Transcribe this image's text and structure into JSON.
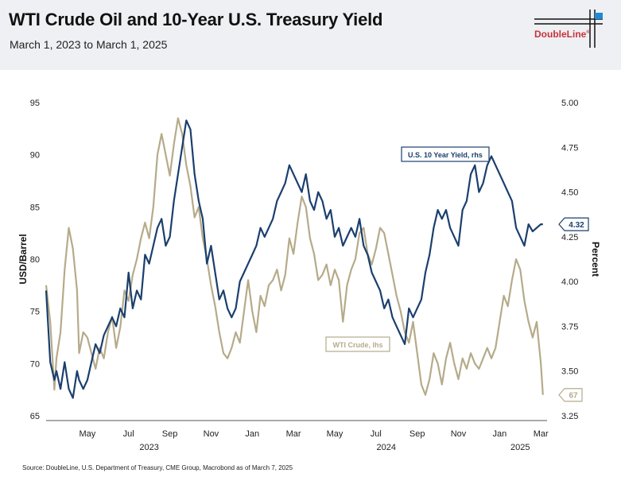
{
  "header": {
    "title": "WTI Crude Oil and 10-Year U.S. Treasury Yield",
    "subtitle": "March 1, 2023 to March 1, 2025",
    "logo_text": "DoubleLine",
    "logo_mark": "®"
  },
  "source": "Source: DoubleLine, U.S. Department of Treasury, CME Group, Macrobond as of March 7, 2025",
  "colors": {
    "crude": "#b5ab8a",
    "yield": "#1b3f6e",
    "header_bg": "#eef0f3",
    "brand": "#c8323c",
    "brand_blue": "#1e8ad6"
  },
  "chart_data": {
    "type": "line",
    "title": "WTI Crude Oil and 10-Year U.S. Treasury Yield",
    "left_axis": {
      "label": "USD/Barrel",
      "ylim": [
        65,
        95
      ],
      "ticks": [
        65,
        70,
        75,
        80,
        85,
        90,
        95
      ]
    },
    "right_axis": {
      "label": "Percent",
      "ylim": [
        3.25,
        5.0
      ],
      "ticks": [
        "3.25",
        "3.50",
        "3.75",
        "4.00",
        "4.25",
        "4.50",
        "4.75",
        "5.00"
      ]
    },
    "x_axis": {
      "range_months": [
        0,
        24.3
      ],
      "ticks": [
        {
          "m": 2,
          "label": "May"
        },
        {
          "m": 4,
          "label": "Jul"
        },
        {
          "m": 6,
          "label": "Sep"
        },
        {
          "m": 8,
          "label": "Nov"
        },
        {
          "m": 10,
          "label": "Jan"
        },
        {
          "m": 12,
          "label": "Mar"
        },
        {
          "m": 14,
          "label": "May"
        },
        {
          "m": 16,
          "label": "Jul"
        },
        {
          "m": 18,
          "label": "Sep"
        },
        {
          "m": 20,
          "label": "Nov"
        },
        {
          "m": 22,
          "label": "Jan"
        },
        {
          "m": 24,
          "label": "Mar"
        }
      ],
      "years": [
        {
          "m": 5,
          "label": "2023"
        },
        {
          "m": 16.5,
          "label": "2024"
        },
        {
          "m": 23,
          "label": "2025"
        }
      ]
    },
    "series": [
      {
        "name": "WTI Crude, lhs",
        "axis": "left",
        "x": [
          0,
          0.2,
          0.4,
          0.5,
          0.7,
          0.9,
          1.1,
          1.3,
          1.5,
          1.6,
          1.8,
          2.0,
          2.2,
          2.4,
          2.6,
          2.8,
          3.0,
          3.2,
          3.4,
          3.6,
          3.8,
          4.0,
          4.2,
          4.4,
          4.6,
          4.8,
          5.0,
          5.2,
          5.4,
          5.6,
          5.8,
          6.0,
          6.2,
          6.4,
          6.6,
          6.8,
          7.0,
          7.2,
          7.4,
          7.6,
          7.8,
          8.0,
          8.2,
          8.4,
          8.6,
          8.8,
          9.0,
          9.2,
          9.4,
          9.6,
          9.8,
          10.0,
          10.2,
          10.4,
          10.6,
          10.8,
          11.0,
          11.2,
          11.4,
          11.6,
          11.8,
          12.0,
          12.2,
          12.4,
          12.6,
          12.8,
          13.0,
          13.2,
          13.4,
          13.6,
          13.8,
          14.0,
          14.2,
          14.4,
          14.6,
          14.8,
          15.0,
          15.2,
          15.4,
          15.6,
          15.8,
          16.0,
          16.2,
          16.4,
          16.6,
          16.8,
          17.0,
          17.2,
          17.4,
          17.6,
          17.8,
          18.0,
          18.2,
          18.4,
          18.6,
          18.8,
          19.0,
          19.2,
          19.4,
          19.6,
          19.8,
          20.0,
          20.2,
          20.4,
          20.6,
          20.8,
          21.0,
          21.2,
          21.4,
          21.6,
          21.8,
          22.0,
          22.2,
          22.4,
          22.6,
          22.8,
          23.0,
          23.2,
          23.4,
          23.6,
          23.8,
          24.0,
          24.1
        ],
        "values": [
          77.5,
          74.0,
          67.5,
          70.5,
          73.0,
          79.0,
          83.0,
          81.0,
          77.0,
          71.0,
          73.0,
          72.5,
          71.0,
          69.5,
          71.5,
          70.5,
          73.0,
          74.5,
          71.5,
          73.5,
          77.0,
          76.0,
          78.5,
          80.0,
          82.0,
          83.5,
          82.0,
          85.0,
          90.0,
          92.0,
          90.0,
          88.0,
          91.0,
          93.5,
          92.0,
          89.0,
          87.0,
          84.0,
          85.0,
          82.0,
          80.0,
          77.5,
          75.5,
          73.0,
          71.0,
          70.5,
          71.5,
          73.0,
          72.0,
          75.0,
          78.0,
          75.0,
          73.0,
          76.5,
          75.5,
          77.5,
          78.0,
          79.0,
          77.0,
          78.5,
          82.0,
          80.5,
          83.5,
          86.0,
          85.0,
          82.0,
          80.5,
          78.0,
          78.5,
          79.5,
          77.5,
          79.0,
          78.0,
          74.0,
          77.5,
          79.0,
          80.0,
          82.5,
          83.0,
          80.5,
          79.5,
          81.0,
          83.0,
          82.5,
          80.5,
          78.5,
          76.5,
          75.0,
          73.0,
          72.0,
          74.0,
          71.0,
          68.0,
          67.0,
          68.5,
          71.0,
          70.0,
          68.0,
          70.5,
          72.0,
          70.0,
          68.5,
          70.5,
          69.5,
          71.0,
          70.0,
          69.5,
          70.5,
          71.5,
          70.5,
          71.5,
          74.0,
          76.5,
          75.5,
          78.0,
          80.0,
          79.0,
          76.0,
          74.0,
          72.5,
          74.0,
          70.0,
          67.0
        ],
        "end_label": "67"
      },
      {
        "name": "U.S. 10 Year Yield, rhs",
        "axis": "right",
        "x": [
          0,
          0.2,
          0.4,
          0.5,
          0.7,
          0.9,
          1.1,
          1.3,
          1.5,
          1.6,
          1.8,
          2.0,
          2.2,
          2.4,
          2.6,
          2.8,
          3.0,
          3.2,
          3.4,
          3.6,
          3.8,
          4.0,
          4.2,
          4.4,
          4.6,
          4.8,
          5.0,
          5.2,
          5.4,
          5.6,
          5.8,
          6.0,
          6.2,
          6.4,
          6.6,
          6.8,
          7.0,
          7.2,
          7.4,
          7.6,
          7.8,
          8.0,
          8.2,
          8.4,
          8.6,
          8.8,
          9.0,
          9.2,
          9.4,
          9.6,
          9.8,
          10.0,
          10.2,
          10.4,
          10.6,
          10.8,
          11.0,
          11.2,
          11.4,
          11.6,
          11.8,
          12.0,
          12.2,
          12.4,
          12.6,
          12.8,
          13.0,
          13.2,
          13.4,
          13.6,
          13.8,
          14.0,
          14.2,
          14.4,
          14.6,
          14.8,
          15.0,
          15.2,
          15.4,
          15.6,
          15.8,
          16.0,
          16.2,
          16.4,
          16.6,
          16.8,
          17.0,
          17.2,
          17.4,
          17.6,
          17.8,
          18.0,
          18.2,
          18.4,
          18.6,
          18.8,
          19.0,
          19.2,
          19.4,
          19.6,
          19.8,
          20.0,
          20.2,
          20.4,
          20.6,
          20.8,
          21.0,
          21.2,
          21.4,
          21.6,
          21.8,
          22.0,
          22.2,
          22.4,
          22.6,
          22.8,
          23.0,
          23.2,
          23.4,
          23.6,
          23.8,
          24.0,
          24.1
        ],
        "values": [
          3.95,
          3.55,
          3.45,
          3.5,
          3.4,
          3.55,
          3.4,
          3.35,
          3.5,
          3.45,
          3.4,
          3.45,
          3.55,
          3.65,
          3.6,
          3.7,
          3.75,
          3.8,
          3.75,
          3.85,
          3.8,
          4.05,
          3.85,
          3.95,
          3.9,
          4.15,
          4.1,
          4.2,
          4.3,
          4.35,
          4.2,
          4.25,
          4.45,
          4.6,
          4.75,
          4.9,
          4.85,
          4.6,
          4.45,
          4.35,
          4.1,
          4.2,
          4.05,
          3.9,
          3.95,
          3.85,
          3.8,
          3.85,
          4.0,
          4.05,
          4.1,
          4.15,
          4.2,
          4.3,
          4.25,
          4.3,
          4.35,
          4.45,
          4.5,
          4.55,
          4.65,
          4.6,
          4.55,
          4.5,
          4.6,
          4.45,
          4.4,
          4.5,
          4.45,
          4.35,
          4.4,
          4.25,
          4.3,
          4.2,
          4.25,
          4.3,
          4.25,
          4.35,
          4.2,
          4.15,
          4.05,
          4.0,
          3.95,
          3.85,
          3.9,
          3.8,
          3.75,
          3.7,
          3.65,
          3.85,
          3.8,
          3.85,
          3.9,
          4.05,
          4.15,
          4.3,
          4.4,
          4.35,
          4.4,
          4.3,
          4.25,
          4.2,
          4.4,
          4.45,
          4.6,
          4.65,
          4.5,
          4.55,
          4.65,
          4.7,
          4.65,
          4.6,
          4.55,
          4.5,
          4.45,
          4.3,
          4.25,
          4.2,
          4.32,
          4.28,
          4.3,
          4.32,
          4.32
        ],
        "end_label": "4.32"
      }
    ]
  }
}
